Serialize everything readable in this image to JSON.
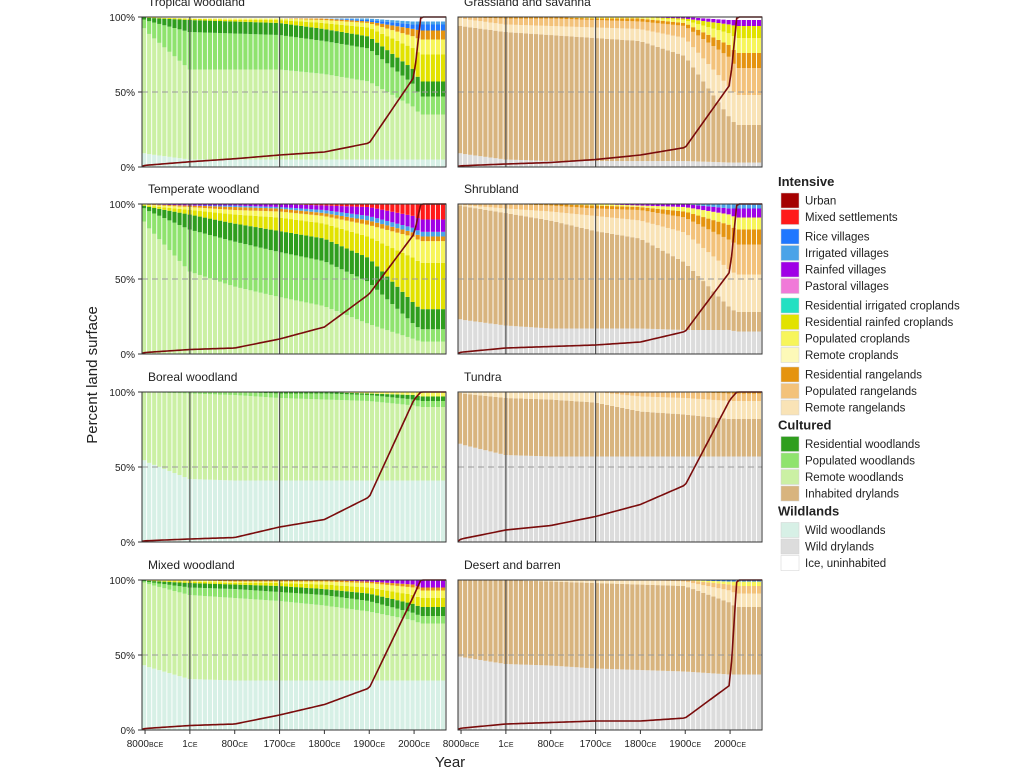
{
  "figure": {
    "ylabel": "Percent land surface",
    "xlabel": "Year",
    "y_ticks": [
      "0%",
      "50%",
      "100%"
    ],
    "x_ticks": [
      {
        "num": "8000",
        "era": "BCE"
      },
      {
        "num": "1",
        "era": "CE"
      },
      {
        "num": "800",
        "era": "CE"
      },
      {
        "num": "1700",
        "era": "CE"
      },
      {
        "num": "1800",
        "era": "CE"
      },
      {
        "num": "1900",
        "era": "CE"
      },
      {
        "num": "2000",
        "era": "CE"
      }
    ]
  },
  "legend": {
    "groups": [
      {
        "title": "Intensive",
        "items": [
          {
            "label": "Urban",
            "color": "#a50000"
          },
          {
            "label": "Mixed settlements",
            "color": "#ff1a1a"
          },
          {
            "label": "Rice villages",
            "color": "#1f77ff"
          },
          {
            "label": "Irrigated villages",
            "color": "#4aa3e8"
          },
          {
            "label": "Rainfed villages",
            "color": "#a000e6"
          },
          {
            "label": "Pastoral villages",
            "color": "#f07ad8"
          },
          {
            "label": "Residential irrigated croplands",
            "color": "#22e0c2"
          },
          {
            "label": "Residential rainfed croplands",
            "color": "#e2e200"
          },
          {
            "label": "Populated croplands",
            "color": "#f7f55a"
          },
          {
            "label": "Remote croplands",
            "color": "#fdf9b8"
          },
          {
            "label": "Residential rangelands",
            "color": "#e59410"
          },
          {
            "label": "Populated rangelands",
            "color": "#f3c27a"
          },
          {
            "label": "Remote rangelands",
            "color": "#f9e3b6"
          }
        ]
      },
      {
        "title": "Cultured",
        "items": [
          {
            "label": "Residential woodlands",
            "color": "#2f9e1e"
          },
          {
            "label": "Populated woodlands",
            "color": "#8fe36e"
          },
          {
            "label": "Remote woodlands",
            "color": "#cbf0a4"
          },
          {
            "label": "Inhabited drylands",
            "color": "#d8b47e"
          }
        ]
      },
      {
        "title": "Wildlands",
        "items": [
          {
            "label": "Wild woodlands",
            "color": "#d7f0e6"
          },
          {
            "label": "Wild drylands",
            "color": "#dcdcdc"
          },
          {
            "label": "Ice, uninhabited",
            "color": "#ffffff"
          }
        ]
      }
    ]
  },
  "chart_data": [
    {
      "type": "area",
      "title": "Tropical woodland",
      "x": [
        -10000,
        0,
        800,
        1700,
        1800,
        1900,
        2000,
        2015
      ],
      "series": [
        {
          "name": "Wild woodlands",
          "values": [
            10,
            5,
            5,
            5,
            5,
            5,
            5,
            5
          ]
        },
        {
          "name": "Remote woodlands",
          "values": [
            88,
            60,
            60,
            60,
            57,
            52,
            35,
            30
          ]
        },
        {
          "name": "Populated woodlands",
          "values": [
            2,
            25,
            24,
            23,
            22,
            22,
            15,
            12
          ]
        },
        {
          "name": "Residential woodlands",
          "values": [
            0,
            8,
            8,
            8,
            8,
            8,
            10,
            10
          ]
        },
        {
          "name": "Residential rainfed croplands",
          "values": [
            0,
            1,
            1,
            2,
            4,
            6,
            14,
            18
          ]
        },
        {
          "name": "Populated croplands",
          "values": [
            0,
            0,
            1,
            1,
            2,
            3,
            8,
            10
          ]
        },
        {
          "name": "Residential rangelands",
          "values": [
            0,
            0,
            0,
            0,
            1,
            1,
            5,
            6
          ]
        },
        {
          "name": "Rice villages",
          "values": [
            0,
            0,
            0,
            0,
            0,
            1,
            3,
            4
          ]
        },
        {
          "name": "Irrigated villages",
          "values": [
            0,
            0,
            0,
            0,
            0,
            1,
            2,
            2
          ]
        },
        {
          "name": "Ice, uninhabited",
          "values": [
            0,
            1,
            1,
            1,
            1,
            1,
            3,
            3
          ]
        }
      ],
      "line": [
        0.5,
        3.5,
        5.5,
        8,
        10,
        16,
        60,
        100
      ],
      "ylim": [
        0,
        100
      ]
    },
    {
      "type": "area",
      "title": "Grassland and savanna",
      "x": [
        -10000,
        0,
        800,
        1700,
        1800,
        1900,
        2000,
        2015
      ],
      "series": [
        {
          "name": "Wild drylands",
          "values": [
            10,
            5,
            4,
            4,
            4,
            4,
            3,
            3
          ]
        },
        {
          "name": "Inhabited drylands",
          "values": [
            85,
            85,
            84,
            82,
            80,
            70,
            30,
            25
          ]
        },
        {
          "name": "Remote rangelands",
          "values": [
            5,
            5,
            6,
            7,
            8,
            12,
            20,
            20
          ]
        },
        {
          "name": "Populated rangelands",
          "values": [
            0,
            4,
            5,
            5,
            5,
            8,
            20,
            18
          ]
        },
        {
          "name": "Residential rangelands",
          "values": [
            0,
            1,
            1,
            1,
            2,
            2,
            8,
            10
          ]
        },
        {
          "name": "Populated croplands",
          "values": [
            0,
            0,
            0,
            1,
            1,
            2,
            8,
            10
          ]
        },
        {
          "name": "Residential rainfed croplands",
          "values": [
            0,
            0,
            0,
            0,
            0,
            1,
            6,
            8
          ]
        },
        {
          "name": "Rainfed villages",
          "values": [
            0,
            0,
            0,
            0,
            0,
            1,
            3,
            4
          ]
        },
        {
          "name": "Ice, uninhabited",
          "values": [
            0,
            0,
            0,
            0,
            0,
            0,
            2,
            2
          ]
        }
      ],
      "line": [
        0.5,
        2,
        3,
        5,
        8,
        13,
        55,
        100
      ],
      "ylim": [
        0,
        100
      ]
    },
    {
      "type": "area",
      "title": "Temperate woodland",
      "x": [
        -10000,
        0,
        800,
        1700,
        1800,
        1900,
        2000,
        2015
      ],
      "series": [
        {
          "name": "Remote woodlands",
          "values": [
            95,
            55,
            45,
            38,
            32,
            20,
            10,
            8
          ]
        },
        {
          "name": "Populated woodlands",
          "values": [
            5,
            28,
            30,
            30,
            30,
            28,
            10,
            8
          ]
        },
        {
          "name": "Residential woodlands",
          "values": [
            0,
            10,
            12,
            14,
            15,
            16,
            14,
            13
          ]
        },
        {
          "name": "Residential rainfed croplands",
          "values": [
            0,
            3,
            6,
            9,
            10,
            14,
            30,
            30
          ]
        },
        {
          "name": "Populated croplands",
          "values": [
            0,
            2,
            3,
            4,
            5,
            8,
            14,
            14
          ]
        },
        {
          "name": "Residential rangelands",
          "values": [
            0,
            1,
            2,
            2,
            2,
            3,
            3,
            3
          ]
        },
        {
          "name": "Irrigated villages",
          "values": [
            0,
            0,
            1,
            1,
            2,
            3,
            3,
            3
          ]
        },
        {
          "name": "Rainfed villages",
          "values": [
            0,
            1,
            1,
            2,
            3,
            6,
            8,
            8
          ]
        },
        {
          "name": "Mixed settlements",
          "values": [
            0,
            0,
            0,
            0,
            1,
            2,
            8,
            10
          ]
        }
      ],
      "line": [
        0.5,
        3,
        4,
        10,
        18,
        40,
        80,
        100
      ],
      "ylim": [
        0,
        100
      ]
    },
    {
      "type": "area",
      "title": "Shrubland",
      "x": [
        -10000,
        0,
        800,
        1700,
        1800,
        1900,
        2000,
        2015
      ],
      "series": [
        {
          "name": "Wild drylands",
          "values": [
            24,
            19,
            17,
            17,
            17,
            16,
            16,
            15
          ]
        },
        {
          "name": "Inhabited drylands",
          "values": [
            76,
            75,
            72,
            65,
            60,
            45,
            15,
            13
          ]
        },
        {
          "name": "Remote rangelands",
          "values": [
            0,
            3,
            6,
            10,
            12,
            20,
            25,
            25
          ]
        },
        {
          "name": "Populated rangelands",
          "values": [
            0,
            3,
            4,
            5,
            7,
            10,
            20,
            20
          ]
        },
        {
          "name": "Residential rangelands",
          "values": [
            0,
            0,
            1,
            2,
            2,
            4,
            10,
            10
          ]
        },
        {
          "name": "Populated croplands",
          "values": [
            0,
            0,
            0,
            1,
            1,
            3,
            7,
            8
          ]
        },
        {
          "name": "Rainfed villages",
          "values": [
            0,
            0,
            0,
            0,
            1,
            2,
            4,
            6
          ]
        },
        {
          "name": "Irrigated villages",
          "values": [
            0,
            0,
            0,
            0,
            0,
            0,
            3,
            3
          ]
        }
      ],
      "line": [
        0.5,
        4,
        5,
        6,
        8,
        15,
        55,
        100
      ],
      "ylim": [
        0,
        100
      ]
    },
    {
      "type": "area",
      "title": "Boreal woodland",
      "x": [
        -10000,
        0,
        800,
        1700,
        1800,
        1900,
        2000,
        2015
      ],
      "series": [
        {
          "name": "Wild woodlands",
          "values": [
            57,
            42,
            41,
            41,
            41,
            41,
            41,
            41
          ]
        },
        {
          "name": "Remote woodlands",
          "values": [
            43,
            57,
            57,
            55,
            54,
            53,
            50,
            49
          ]
        },
        {
          "name": "Populated woodlands",
          "values": [
            0,
            1,
            2,
            3,
            4,
            4,
            4,
            4
          ]
        },
        {
          "name": "Residential woodlands",
          "values": [
            0,
            0,
            0,
            1,
            1,
            1,
            3,
            3
          ]
        },
        {
          "name": "Populated croplands",
          "values": [
            0,
            0,
            0,
            0,
            0,
            1,
            2,
            3
          ]
        }
      ],
      "line": [
        0.5,
        2,
        3,
        10,
        15,
        30,
        95,
        100
      ],
      "ylim": [
        0,
        100
      ]
    },
    {
      "type": "area",
      "title": "Tundra",
      "x": [
        -10000,
        0,
        800,
        1700,
        1800,
        1900,
        2000,
        2015
      ],
      "series": [
        {
          "name": "Wild drylands",
          "values": [
            67,
            58,
            57,
            57,
            57,
            57,
            57,
            57
          ]
        },
        {
          "name": "Inhabited drylands",
          "values": [
            33,
            38,
            38,
            36,
            30,
            28,
            25,
            25
          ]
        },
        {
          "name": "Remote rangelands",
          "values": [
            0,
            4,
            5,
            7,
            10,
            11,
            12,
            12
          ]
        },
        {
          "name": "Populated rangelands",
          "values": [
            0,
            0,
            0,
            0,
            3,
            4,
            5,
            5
          ]
        },
        {
          "name": "Residential rangelands",
          "values": [
            0,
            0,
            0,
            0,
            0,
            0,
            1,
            1
          ]
        }
      ],
      "line": [
        0.5,
        8,
        11,
        17,
        25,
        38,
        95,
        100
      ],
      "ylim": [
        0,
        100
      ]
    },
    {
      "type": "area",
      "title": "Mixed woodland",
      "x": [
        -10000,
        0,
        800,
        1700,
        1800,
        1900,
        2000,
        2015
      ],
      "series": [
        {
          "name": "Wild woodlands",
          "values": [
            45,
            34,
            33,
            33,
            33,
            33,
            33,
            33
          ]
        },
        {
          "name": "Remote woodlands",
          "values": [
            55,
            56,
            55,
            53,
            50,
            46,
            40,
            38
          ]
        },
        {
          "name": "Populated woodlands",
          "values": [
            0,
            5,
            6,
            6,
            7,
            7,
            5,
            5
          ]
        },
        {
          "name": "Residential woodlands",
          "values": [
            0,
            3,
            3,
            4,
            4,
            5,
            6,
            6
          ]
        },
        {
          "name": "Residential rainfed croplands",
          "values": [
            0,
            1,
            1,
            2,
            3,
            4,
            6,
            6
          ]
        },
        {
          "name": "Populated croplands",
          "values": [
            0,
            1,
            1,
            1,
            2,
            3,
            5,
            5
          ]
        },
        {
          "name": "Residential rangelands",
          "values": [
            0,
            0,
            1,
            1,
            1,
            1,
            2,
            2
          ]
        },
        {
          "name": "Rainfed villages",
          "values": [
            0,
            0,
            0,
            0,
            0,
            1,
            3,
            5
          ]
        }
      ],
      "line": [
        0.5,
        3,
        4,
        10,
        17,
        28,
        90,
        100
      ],
      "ylim": [
        0,
        100
      ]
    },
    {
      "type": "area",
      "title": "Desert and barren",
      "x": [
        -10000,
        0,
        800,
        1700,
        1800,
        1900,
        2000,
        2015
      ],
      "series": [
        {
          "name": "Wild drylands",
          "values": [
            50,
            44,
            43,
            41,
            40,
            39,
            37,
            37
          ]
        },
        {
          "name": "Inhabited drylands",
          "values": [
            50,
            56,
            56,
            57,
            57,
            57,
            48,
            45
          ]
        },
        {
          "name": "Remote rangelands",
          "values": [
            0,
            0,
            1,
            2,
            3,
            3,
            8,
            9
          ]
        },
        {
          "name": "Populated rangelands",
          "values": [
            0,
            0,
            0,
            0,
            0,
            1,
            4,
            5
          ]
        },
        {
          "name": "Populated croplands",
          "values": [
            0,
            0,
            0,
            0,
            0,
            0,
            2,
            3
          ]
        },
        {
          "name": "Rice villages",
          "values": [
            0,
            0,
            0,
            0,
            0,
            0,
            1,
            1
          ]
        }
      ],
      "line": [
        0.5,
        4,
        5,
        6,
        6,
        8,
        30,
        100
      ],
      "ylim": [
        0,
        100
      ]
    }
  ]
}
